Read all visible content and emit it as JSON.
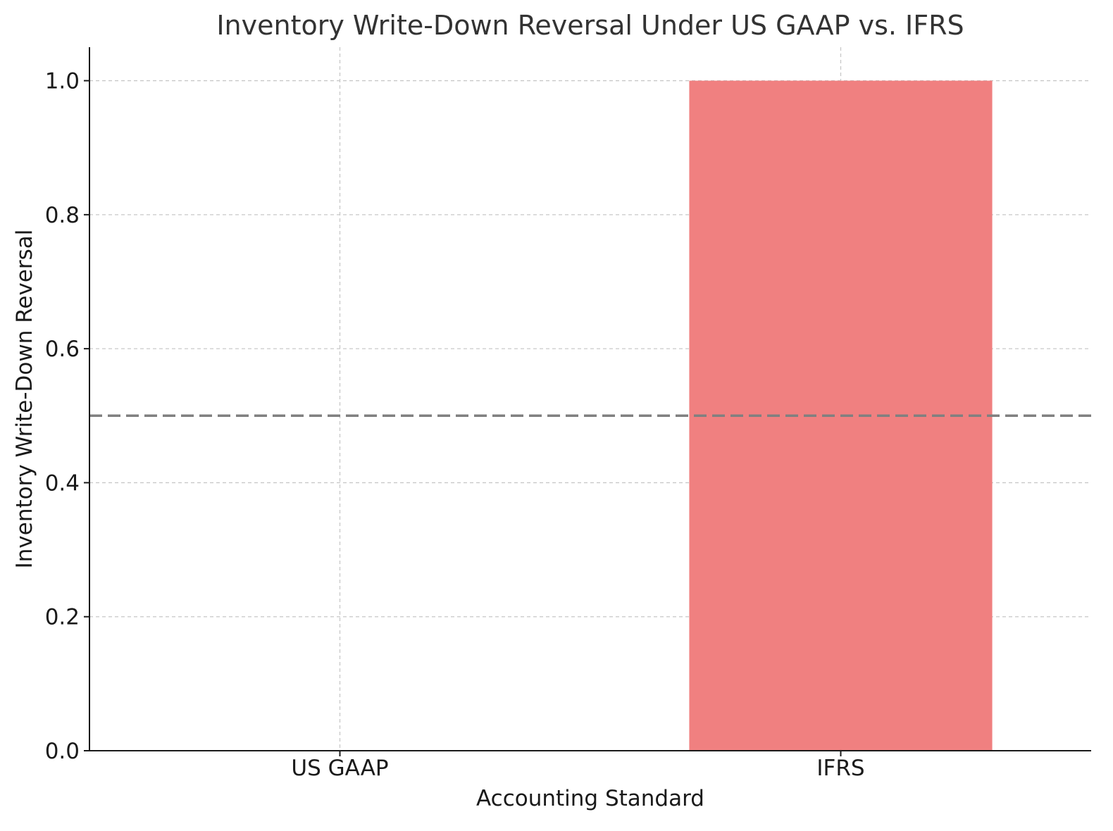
{
  "chart_data": {
    "type": "bar",
    "title": "Inventory Write-Down Reversal Under US GAAP vs. IFRS",
    "xlabel": "Accounting Standard",
    "ylabel": "Inventory Write-Down Reversal",
    "categories": [
      "US GAAP",
      "IFRS"
    ],
    "values": [
      0,
      1
    ],
    "ylim": [
      0,
      1.05
    ],
    "yticks": [
      "0.0",
      "0.2",
      "0.4",
      "0.6",
      "0.8",
      "1.0"
    ],
    "reference_line": {
      "y": 0.5,
      "style": "dashed",
      "color": "#808080"
    },
    "bar_colors": [
      "#87CEEB",
      "#F08080"
    ],
    "grid": true
  }
}
